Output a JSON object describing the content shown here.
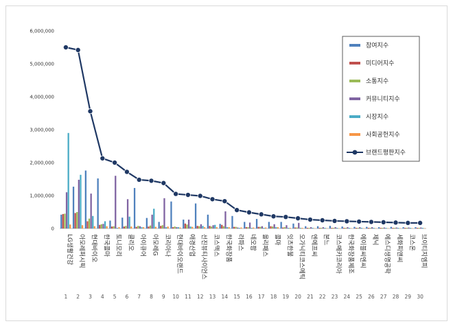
{
  "chart_data": {
    "type": "bar",
    "y_ticks": [
      "0",
      "1,000,000",
      "2,000,000",
      "3,000,000",
      "4,000,000",
      "5,000,000",
      "6,000,000"
    ],
    "ylim": [
      0,
      6000000
    ],
    "legend_position": "top-right",
    "categories": [
      "LG생활건강",
      "아모레퍼시픽",
      "현대바이오",
      "한국콜마",
      "토니모리",
      "클리오",
      "아이큐어",
      "아모레G",
      "코리아나",
      "현대바이오랜드",
      "애경산업",
      "선진뷰티사이언스",
      "코스맥스",
      "한국화장품",
      "라파스",
      "네오팜",
      "올리패스",
      "콜마",
      "잇츠한불",
      "오가닉티코스메틱",
      "엔에프씨",
      "본느",
      "코스메카코리아",
      "한국화장품제조",
      "에이블씨엔씨",
      "제닉",
      "에스디생명공학",
      "세화피앤씨",
      "코스온",
      "브이티지엠피"
    ],
    "index_labels": [
      "1",
      "2",
      "3",
      "4",
      "5",
      "6",
      "7",
      "8",
      "9",
      "10",
      "11",
      "12",
      "13",
      "14",
      "15",
      "16",
      "17",
      "18",
      "19",
      "20",
      "21",
      "22",
      "23",
      "24",
      "25",
      "26",
      "27",
      "28",
      "29",
      "30"
    ],
    "series": [
      {
        "name": "참여지수",
        "type": "bar",
        "color": "#4f81bd",
        "values": [
          420000,
          1270000,
          1760000,
          1520000,
          240000,
          330000,
          1230000,
          320000,
          200000,
          820000,
          270000,
          760000,
          420000,
          140000,
          380000,
          200000,
          290000,
          200000,
          200000,
          150000,
          70000,
          70000,
          80000,
          60000,
          50000,
          50000,
          40000,
          50000,
          40000,
          40000
        ]
      },
      {
        "name": "미디어지수",
        "type": "bar",
        "color": "#c0504d",
        "values": [
          440000,
          470000,
          220000,
          110000,
          60000,
          60000,
          50000,
          60000,
          80000,
          40000,
          150000,
          80000,
          80000,
          110000,
          50000,
          40000,
          50000,
          70000,
          30000,
          30000,
          20000,
          20000,
          20000,
          20000,
          20000,
          20000,
          20000,
          20000,
          20000,
          20000
        ]
      },
      {
        "name": "소통지수",
        "type": "bar",
        "color": "#9bbb59",
        "values": [
          450000,
          500000,
          300000,
          130000,
          70000,
          80000,
          80000,
          90000,
          100000,
          60000,
          120000,
          70000,
          60000,
          70000,
          50000,
          40000,
          50000,
          60000,
          40000,
          30000,
          20000,
          20000,
          20000,
          20000,
          20000,
          20000,
          20000,
          20000,
          20000,
          20000
        ]
      },
      {
        "name": "커뮤니티지수",
        "type": "bar",
        "color": "#8064a2",
        "values": [
          1100000,
          1480000,
          1060000,
          140000,
          1600000,
          890000,
          70000,
          420000,
          920000,
          40000,
          270000,
          130000,
          100000,
          520000,
          30000,
          180000,
          70000,
          130000,
          100000,
          170000,
          40000,
          40000,
          40000,
          40000,
          40000,
          40000,
          30000,
          30000,
          30000,
          30000
        ]
      },
      {
        "name": "시장지수",
        "type": "bar",
        "color": "#4bacc6",
        "values": [
          2900000,
          1630000,
          380000,
          220000,
          20000,
          360000,
          40000,
          600000,
          40000,
          40000,
          60000,
          80000,
          110000,
          40000,
          20000,
          20000,
          20000,
          40000,
          20000,
          20000,
          20000,
          20000,
          20000,
          20000,
          20000,
          20000,
          20000,
          20000,
          20000,
          20000
        ]
      },
      {
        "name": "사회공헌지수",
        "type": "bar",
        "color": "#f79646",
        "values": [
          120000,
          100000,
          70000,
          70000,
          40000,
          60000,
          40000,
          50000,
          60000,
          30000,
          50000,
          40000,
          40000,
          40000,
          30000,
          30000,
          30000,
          40000,
          20000,
          20000,
          10000,
          10000,
          10000,
          10000,
          10000,
          10000,
          10000,
          10000,
          10000,
          10000
        ]
      },
      {
        "name": "브랜드평판지수",
        "type": "line",
        "color": "#1f3864",
        "values": [
          5500000,
          5420000,
          3560000,
          2130000,
          2000000,
          1720000,
          1480000,
          1450000,
          1380000,
          1050000,
          1020000,
          990000,
          890000,
          830000,
          560000,
          490000,
          430000,
          370000,
          350000,
          310000,
          270000,
          250000,
          230000,
          220000,
          210000,
          200000,
          190000,
          180000,
          170000,
          170000
        ]
      }
    ]
  }
}
